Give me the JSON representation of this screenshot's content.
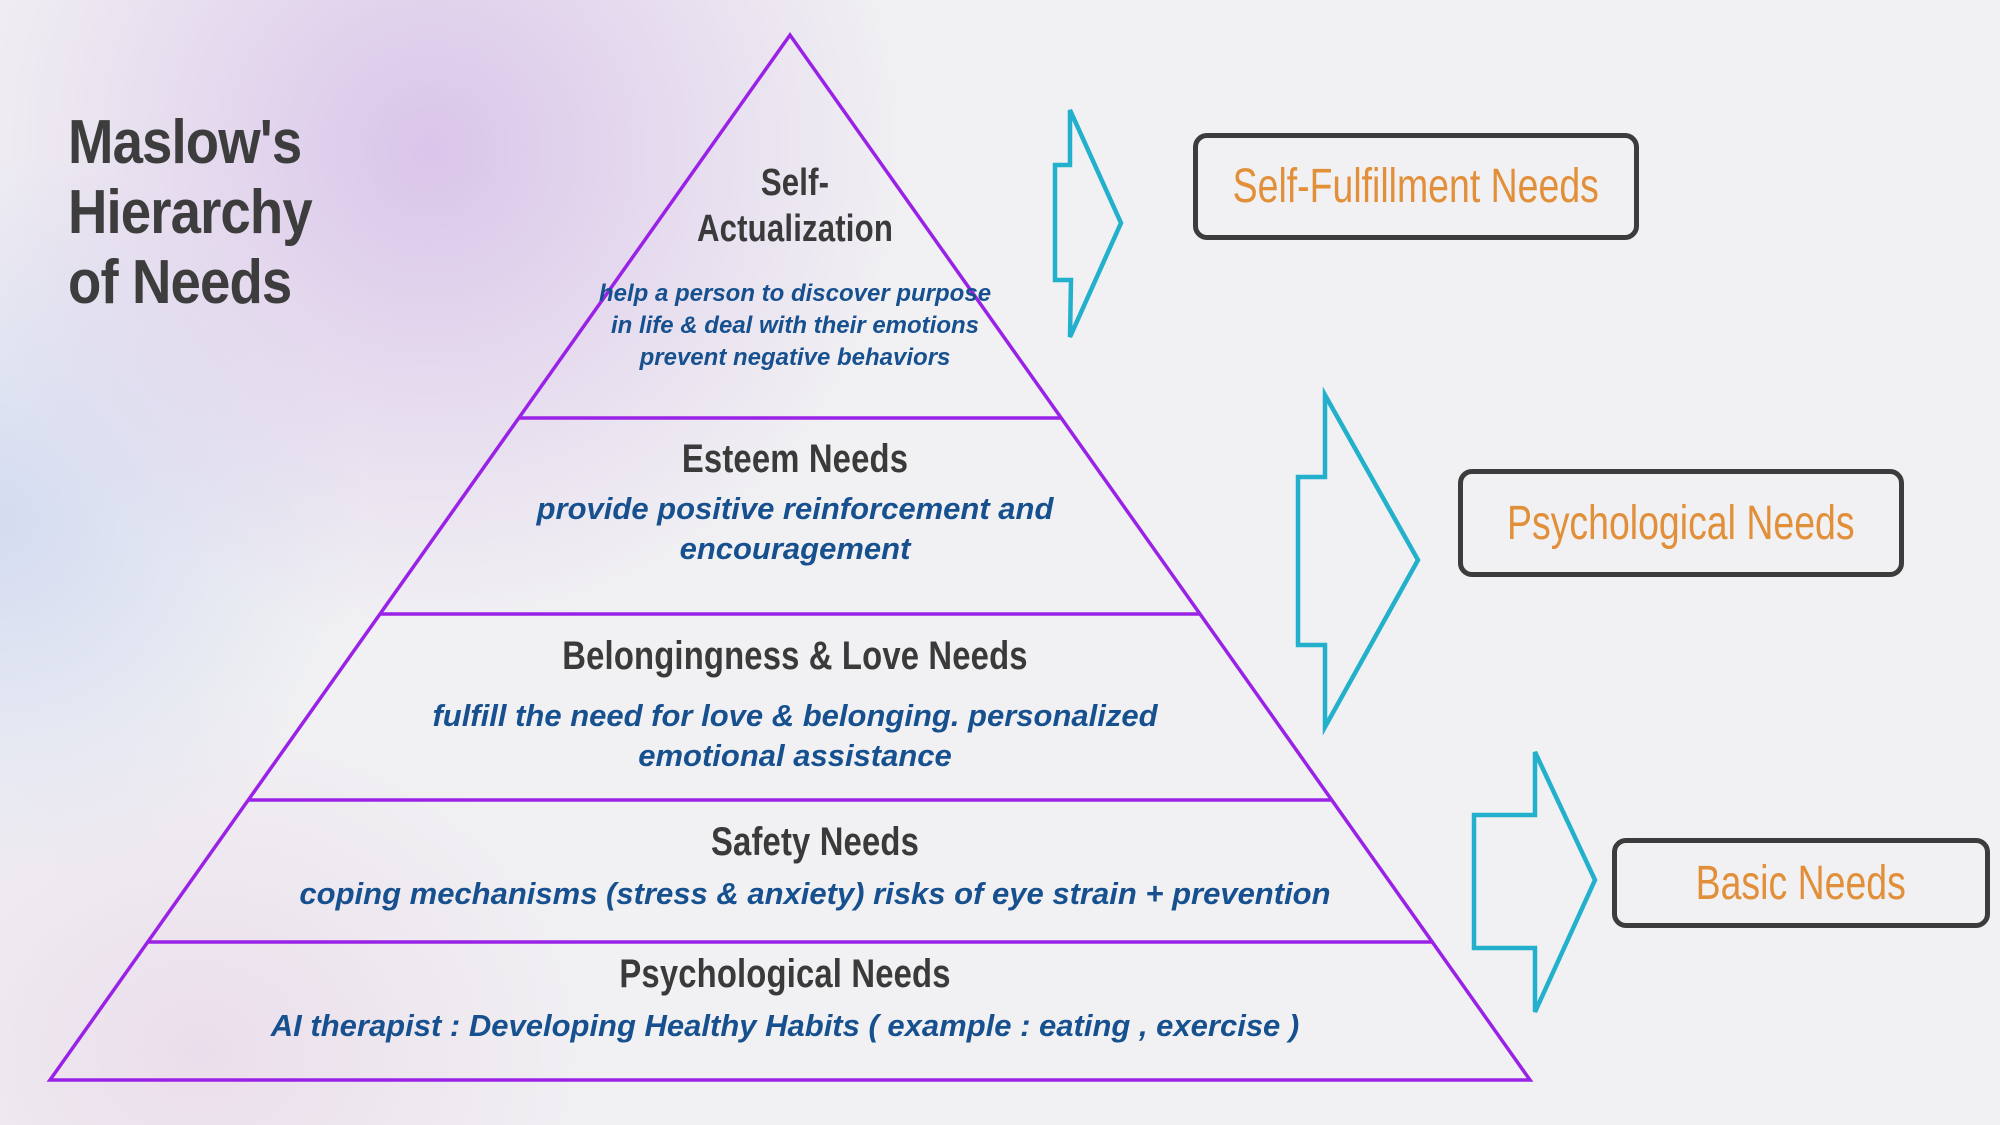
{
  "title": {
    "line1": "Maslow's Hierarchy",
    "line2": "of Needs"
  },
  "levels": [
    {
      "name_line1": "Self-",
      "name_line2": "Actualization",
      "description": "help a person to discover purpose in life & deal with their emotions prevent negative behaviors"
    },
    {
      "name": "Esteem Needs",
      "description": "provide positive reinforcement and encouragement"
    },
    {
      "name": "Belongingness & Love Needs",
      "description": "fulfill the need for love &  belonging. personalized emotional assistance"
    },
    {
      "name": "Safety Needs",
      "description": "coping mechanisms (stress & anxiety) risks of eye strain + prevention"
    },
    {
      "name": "Psychological Needs",
      "description": "AI therapist : Developing Healthy Habits ( example : eating , exercise )"
    }
  ],
  "groups": [
    {
      "label": "Self-Fulfillment Needs"
    },
    {
      "label": "Psychological Needs"
    },
    {
      "label": "Basic Needs"
    }
  ],
  "colors": {
    "pyramid_outline": "#9a22e6",
    "arrow_outline": "#22b0cc",
    "group_text": "#e28f3a",
    "group_border": "#3c3c3c",
    "level_title": "#3a3a3a",
    "level_description": "#17508f",
    "title": "#3d3d3d"
  },
  "icons": {
    "arrow": "right-arrow-icon"
  }
}
